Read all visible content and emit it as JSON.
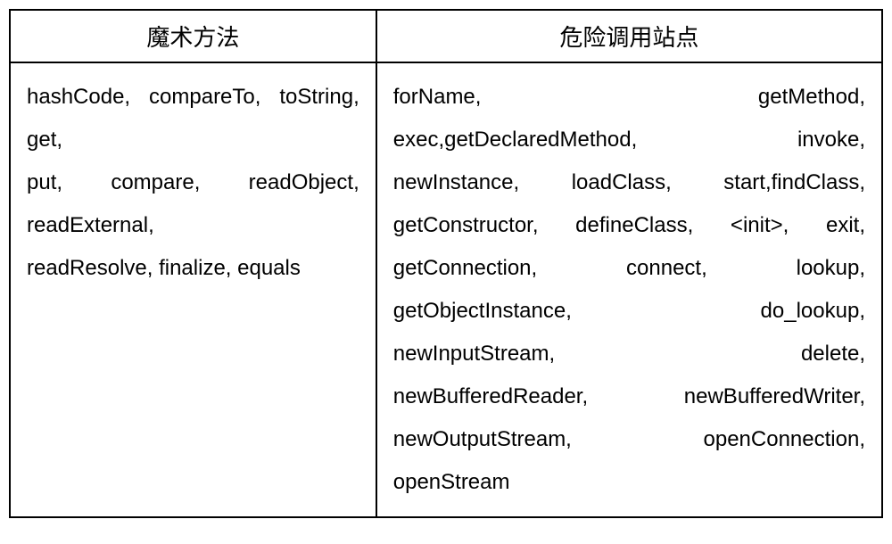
{
  "table": {
    "headers": {
      "col1": "魔术方法",
      "col2": "危险调用站点"
    },
    "cells": {
      "left": {
        "line1": "hashCode, compareTo, toString, get,",
        "line2": "put, compare, readObject, readExternal,",
        "line3": "readResolve, finalize, equals"
      },
      "right": {
        "line1": "forName, getMethod,",
        "line2": "exec,getDeclaredMethod, invoke,",
        "line3": "newInstance, loadClass, start,findClass,",
        "line4": "getConstructor, defineClass, <init>, exit,",
        "line5": "getConnection, connect, lookup,",
        "line6": "getObjectInstance, do_lookup,",
        "line7": "newInputStream, delete,",
        "line8": "newBufferedReader, newBufferedWriter,",
        "line9": "newOutputStream, openConnection,",
        "line10": "openStream"
      }
    },
    "styling": {
      "border_color": "#000000",
      "background_color": "#ffffff",
      "header_fontsize": 26,
      "cell_fontsize": 24,
      "line_height": 2.0,
      "col_widths": [
        "42%",
        "58%"
      ]
    }
  }
}
